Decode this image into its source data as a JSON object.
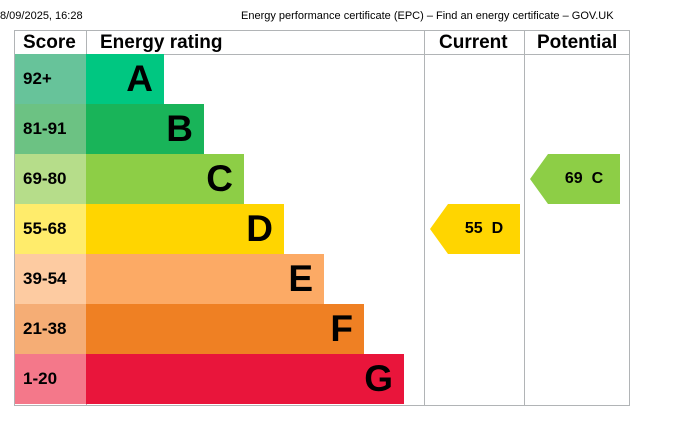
{
  "print_header": {
    "datetime": "8/09/2025, 16:28",
    "title": "Energy performance certificate (EPC) – Find an energy certificate – GOV.UK"
  },
  "table": {
    "headers": {
      "score": "Score",
      "rating": "Energy rating",
      "current": "Current",
      "potential": "Potential"
    },
    "bands": [
      {
        "range": "92+",
        "letter": "A",
        "score_bg": "#67c39a",
        "bar_color": "#00c781"
      },
      {
        "range": "81-91",
        "letter": "B",
        "score_bg": "#6cc283",
        "bar_color": "#19b459"
      },
      {
        "range": "69-80",
        "letter": "C",
        "score_bg": "#b6dd8a",
        "bar_color": "#8dce46"
      },
      {
        "range": "55-68",
        "letter": "D",
        "score_bg": "#ffec6b",
        "bar_color": "#ffd500"
      },
      {
        "range": "39-54",
        "letter": "E",
        "score_bg": "#fdcba1",
        "bar_color": "#fcaa65"
      },
      {
        "range": "21-38",
        "letter": "F",
        "score_bg": "#f5ad75",
        "bar_color": "#ef8023"
      },
      {
        "range": "1-20",
        "letter": "G",
        "score_bg": "#f4788a",
        "bar_color": "#e9153b"
      }
    ],
    "current": {
      "score": "55",
      "letter": "D",
      "color": "#ffd500"
    },
    "potential": {
      "score": "69",
      "letter": "C",
      "color": "#8dce46"
    }
  }
}
